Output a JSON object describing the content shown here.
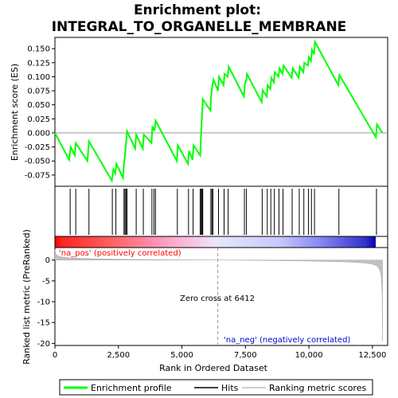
{
  "chart_data": {
    "type": "line",
    "title_line1": "Enrichment plot:",
    "title_line2": "INTEGRAL_TO_ORGANELLE_MEMBRANE",
    "es_panel": {
      "ylabel": "Enrichment score (ES)",
      "ylim": [
        -0.095,
        0.17
      ],
      "yticks": [
        -0.075,
        -0.05,
        -0.025,
        0.0,
        0.025,
        0.05,
        0.075,
        0.1,
        0.125,
        0.15
      ],
      "ytick_labels": [
        "-0.075",
        "-0.050",
        "-0.025",
        "0.000",
        "0.025",
        "0.050",
        "0.075",
        "0.100",
        "0.125",
        "0.150"
      ],
      "series": [
        {
          "name": "Enrichment profile",
          "color": "#00ff00",
          "x": [
            0,
            560,
            620,
            780,
            820,
            1280,
            1340,
            2240,
            2300,
            2380,
            2420,
            2680,
            2720,
            2760,
            2800,
            2840,
            3160,
            3200,
            3460,
            3500,
            3800,
            3840,
            3920,
            3960,
            4800,
            4840,
            5240,
            5280,
            5420,
            5460,
            5720,
            5740,
            5760,
            5780,
            5800,
            5820,
            6120,
            6140,
            6180,
            6240,
            6420,
            6460,
            6640,
            6680,
            6800,
            6840,
            7440,
            7480,
            7540,
            7560,
            8140,
            8180,
            8340,
            8380,
            8480,
            8520,
            8620,
            8660,
            8800,
            8840,
            8960,
            9000,
            9320,
            9360,
            9600,
            9640,
            9780,
            9820,
            9960,
            10000,
            10080,
            10120,
            10200,
            10240,
            11160,
            11200,
            12640,
            12680,
            12900
          ],
          "y": [
            0.0,
            -0.048,
            -0.025,
            -0.04,
            -0.018,
            -0.05,
            -0.015,
            -0.085,
            -0.065,
            -0.072,
            -0.055,
            -0.08,
            -0.055,
            -0.038,
            -0.02,
            0.003,
            -0.028,
            -0.003,
            -0.028,
            -0.003,
            -0.018,
            0.012,
            0.003,
            0.022,
            -0.05,
            -0.022,
            -0.055,
            -0.032,
            -0.048,
            -0.022,
            -0.04,
            -0.015,
            0.003,
            0.022,
            0.04,
            0.06,
            0.04,
            0.058,
            0.078,
            0.095,
            0.075,
            0.1,
            0.085,
            0.105,
            0.1,
            0.118,
            0.065,
            0.088,
            0.095,
            0.105,
            0.055,
            0.076,
            0.065,
            0.085,
            0.078,
            0.098,
            0.09,
            0.108,
            0.1,
            0.115,
            0.105,
            0.12,
            0.098,
            0.115,
            0.098,
            0.118,
            0.108,
            0.125,
            0.12,
            0.135,
            0.128,
            0.148,
            0.14,
            0.162,
            0.085,
            0.103,
            -0.008,
            0.015,
            0.0
          ]
        }
      ]
    },
    "hits_panel": {
      "hit_label": "Hits",
      "hit_positions": [
        600,
        820,
        1340,
        2260,
        2400,
        2720,
        2760,
        2800,
        2840,
        3200,
        3480,
        3820,
        3900,
        3960,
        4820,
        5260,
        5440,
        5720,
        5760,
        5780,
        5800,
        5820,
        6140,
        6180,
        6220,
        6440,
        6660,
        6820,
        7460,
        7540,
        8160,
        8360,
        8500,
        8640,
        8820,
        8980,
        9340,
        9620,
        9800,
        9980,
        10100,
        10220,
        11180,
        12660
      ]
    },
    "rank_panel": {
      "ylabel": "Ranked list metric (PreRanked)",
      "xlabel": "Rank in Ordered Dataset",
      "ylim": [
        -20.5,
        3
      ],
      "yticks": [
        0,
        -5,
        -10,
        -15,
        -20
      ],
      "ytick_labels": [
        "0",
        "-5",
        "-10",
        "-15",
        "-20"
      ],
      "xlim": [
        0,
        13100
      ],
      "xticks": [
        0,
        2500,
        5000,
        7500,
        10000,
        12500
      ],
      "xtick_labels": [
        "0",
        "2,500",
        "5,000",
        "7,500",
        "10,000",
        "12,500"
      ],
      "zero_cross": 6412,
      "zero_cross_text": "Zero cross at 6412",
      "pos_text": "'na_pos' (positively correlated)",
      "neg_text": "'na_neg' (negatively correlated)",
      "pos_color": "#ff0000",
      "neg_color": "#0000cc",
      "metric_x": [
        0,
        50,
        200,
        600,
        1500,
        3000,
        4500,
        6412,
        8000,
        10000,
        11500,
        12200,
        12500,
        12700,
        12800,
        12850,
        12880,
        12900
      ],
      "metric_y": [
        2.5,
        1.3,
        0.8,
        0.5,
        0.3,
        0.15,
        0.05,
        0.0,
        -0.1,
        -0.25,
        -0.45,
        -0.7,
        -1.0,
        -1.5,
        -2.5,
        -4.0,
        -8.0,
        -19.5
      ]
    },
    "legend": [
      {
        "label": "Enrichment profile",
        "color": "#00ff00"
      },
      {
        "label": "Hits",
        "color": "#000000"
      },
      {
        "label": "Ranking metric scores",
        "color": "#c0c0c0"
      }
    ]
  }
}
